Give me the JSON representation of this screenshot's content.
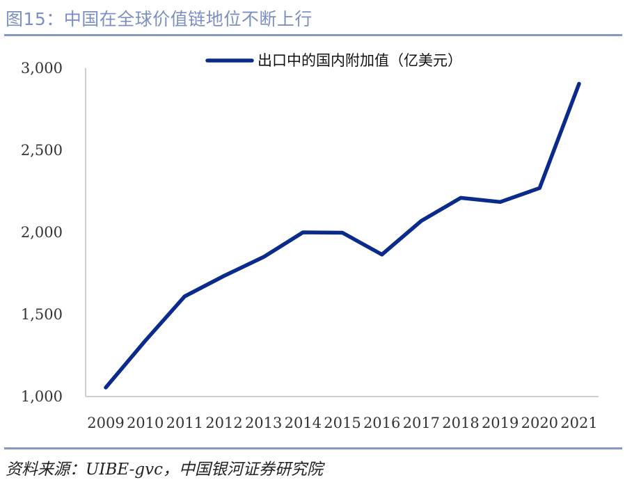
{
  "header": {
    "title": "图15：中国在全球价值链地位不断上行"
  },
  "footer": {
    "source": "资料来源：UIBE-gvc，中国银河证券研究院"
  },
  "chart_data": {
    "type": "line",
    "title": "",
    "xlabel": "",
    "ylabel": "",
    "x": [
      "2009",
      "2010",
      "2011",
      "2012",
      "2013",
      "2014",
      "2015",
      "2016",
      "2017",
      "2018",
      "2019",
      "2020",
      "2021"
    ],
    "series": [
      {
        "name": "出口中的国内附加值（亿美元）",
        "color": "#0b2b8c",
        "values": [
          1055,
          1340,
          1610,
          1735,
          1850,
          2000,
          1998,
          1865,
          2070,
          2210,
          2185,
          2270,
          2905
        ]
      }
    ],
    "ylim": [
      1000,
      3000
    ],
    "yticks": [
      "1,000",
      "1,500",
      "2,000",
      "2,500",
      "3,000"
    ],
    "ytick_values": [
      1000,
      1500,
      2000,
      2500,
      3000
    ],
    "grid": false,
    "legend_position": "top-center"
  }
}
